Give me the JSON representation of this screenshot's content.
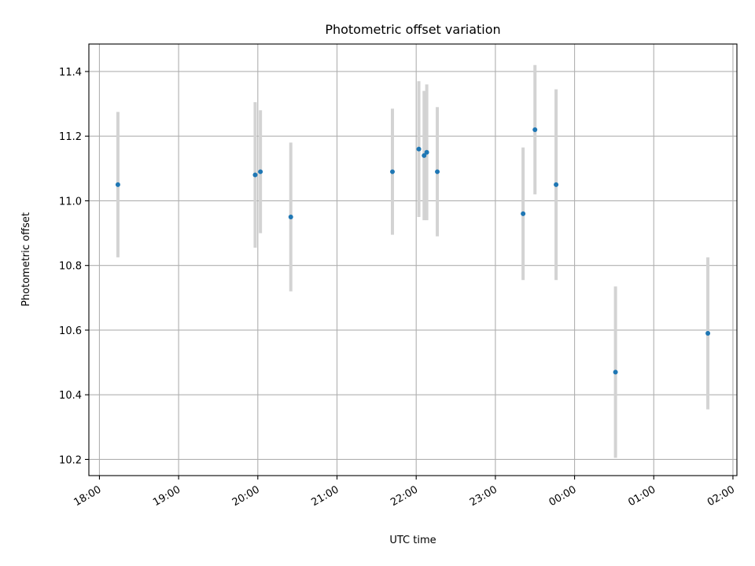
{
  "chart_data": {
    "type": "scatter",
    "title": "Photometric offset variation",
    "xlabel": "UTC time",
    "ylabel": "Photometric offset",
    "xlim": [
      "17:52",
      "02:03"
    ],
    "ylim": [
      10.15,
      11.485
    ],
    "grid": true,
    "x_ticks": [
      "18:00",
      "19:00",
      "20:00",
      "21:00",
      "22:00",
      "23:00",
      "00:00",
      "01:00",
      "02:00"
    ],
    "y_ticks": [
      10.2,
      10.4,
      10.6,
      10.8,
      11.0,
      11.2,
      11.4
    ],
    "y_tick_labels": [
      "10.2",
      "10.4",
      "10.6",
      "10.8",
      "11.0",
      "11.2",
      "11.4"
    ],
    "point_color": "#1f77b4",
    "errorbar_color": "#d3d3d3",
    "points": [
      {
        "x": "18:14",
        "y": 11.05,
        "yerr": 0.225
      },
      {
        "x": "19:58",
        "y": 11.08,
        "yerr": 0.225
      },
      {
        "x": "20:02",
        "y": 11.09,
        "yerr": 0.19
      },
      {
        "x": "20:25",
        "y": 10.95,
        "yerr": 0.23
      },
      {
        "x": "21:42",
        "y": 11.09,
        "yerr": 0.195
      },
      {
        "x": "22:02",
        "y": 11.16,
        "yerr": 0.21
      },
      {
        "x": "22:06",
        "y": 11.14,
        "yerr": 0.2
      },
      {
        "x": "22:08",
        "y": 11.15,
        "yerr": 0.21
      },
      {
        "x": "22:16",
        "y": 11.09,
        "yerr": 0.2
      },
      {
        "x": "23:21",
        "y": 10.96,
        "yerr": 0.205
      },
      {
        "x": "23:30",
        "y": 11.22,
        "yerr": 0.2
      },
      {
        "x": "23:46",
        "y": 11.05,
        "yerr": 0.295
      },
      {
        "x": "00:31",
        "y": 10.47,
        "yerr": 0.265
      },
      {
        "x": "01:41",
        "y": 10.59,
        "yerr": 0.235
      }
    ]
  }
}
